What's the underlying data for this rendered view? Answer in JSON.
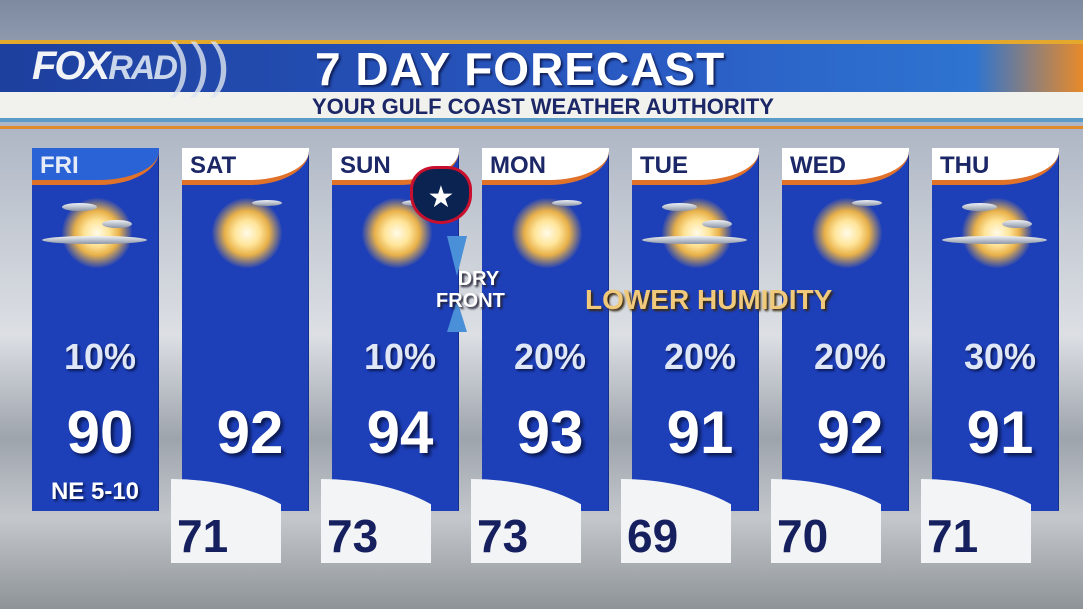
{
  "header": {
    "logo": "FOXRAD",
    "logo_fox": "FOX",
    "logo_rad": "RAD",
    "title": "7 DAY FORECAST",
    "subtitle": "YOUR GULF COAST WEATHER AUTHORITY"
  },
  "annotations": {
    "front_line1": "DRY",
    "front_line2": "FRONT",
    "humidity": "LOWER HUMIDITY",
    "team_logo": "houston-texans-logo"
  },
  "days": [
    {
      "day": "FRI",
      "icon": "mostly-sunny",
      "pop": "10%",
      "high": "90",
      "low": "",
      "wind": "NE 5-10"
    },
    {
      "day": "SAT",
      "icon": "sunny",
      "pop": "",
      "high": "92",
      "low": "71"
    },
    {
      "day": "SUN",
      "icon": "sunny",
      "pop": "10%",
      "high": "94",
      "low": "73"
    },
    {
      "day": "MON",
      "icon": "sunny",
      "pop": "20%",
      "high": "93",
      "low": "73"
    },
    {
      "day": "TUE",
      "icon": "mostly-sunny",
      "pop": "20%",
      "high": "91",
      "low": "69"
    },
    {
      "day": "WED",
      "icon": "sunny",
      "pop": "20%",
      "high": "92",
      "low": "70"
    },
    {
      "day": "THU",
      "icon": "mostly-sunny",
      "pop": "30%",
      "high": "91",
      "low": "71"
    }
  ],
  "colors": {
    "panel": "#1d3fb8",
    "accent": "#e0722a",
    "low_text": "#16205e"
  }
}
